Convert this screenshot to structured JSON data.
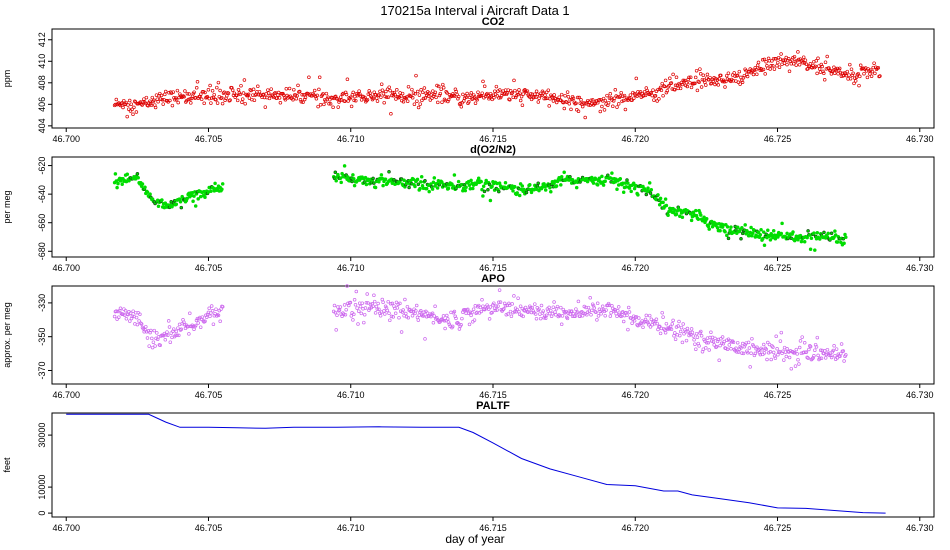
{
  "figure": {
    "title": "170215a   Interval i Aircraft Data 1",
    "xlabel": "day of year"
  },
  "chart_data": [
    {
      "type": "scatter",
      "title": "CO2",
      "ylabel": "ppm",
      "color": "#dd0000",
      "marker": "open-circle",
      "xlim": [
        46.6995,
        46.7305
      ],
      "ylim": [
        403.8,
        413.0
      ],
      "yticks": [
        404,
        406,
        408,
        410,
        412
      ],
      "xticks": [
        "46.700",
        "46.705",
        "46.710",
        "46.715",
        "46.720",
        "46.725",
        "46.730"
      ],
      "x_range": [
        46.7017,
        46.7286
      ],
      "trend_x": [
        46.7017,
        46.7025,
        46.7035,
        46.705,
        46.7065,
        46.708,
        46.7095,
        46.711,
        46.7125,
        46.714,
        46.7155,
        46.717,
        46.718,
        46.719,
        46.72,
        46.721,
        46.722,
        46.7235,
        46.7245,
        46.7255,
        46.7265,
        46.7275,
        46.7286
      ],
      "trend_y": [
        406.0,
        405.9,
        406.6,
        406.8,
        407.0,
        406.8,
        406.5,
        406.8,
        406.9,
        406.6,
        407.0,
        406.6,
        406.2,
        406.3,
        406.8,
        407.4,
        408.0,
        408.3,
        409.6,
        410.2,
        409.3,
        408.9,
        409.0
      ],
      "noise": 0.6
    },
    {
      "type": "scatter",
      "title": "d(O2/N2)",
      "ylabel": "per meg",
      "color": "#00dd00",
      "marker": "filled-circle",
      "xlim": [
        46.6995,
        46.7305
      ],
      "ylim": [
        -684,
        -614
      ],
      "yticks": [
        -680,
        -660,
        -640,
        -620
      ],
      "xticks": [
        "46.700",
        "46.705",
        "46.710",
        "46.715",
        "46.720",
        "46.725",
        "46.730"
      ],
      "x_ranges": [
        [
          46.7017,
          46.7055
        ],
        [
          46.7094,
          46.7274
        ]
      ],
      "trend_x": [
        46.7017,
        46.7025,
        46.703,
        46.7035,
        46.7045,
        46.7055,
        46.7094,
        46.7105,
        46.712,
        46.7135,
        46.715,
        46.716,
        46.7175,
        46.719,
        46.7205,
        46.721,
        46.722,
        46.723,
        46.7245,
        46.726,
        46.7274
      ],
      "trend_y": [
        -630,
        -630,
        -644,
        -648,
        -640,
        -636,
        -628,
        -630,
        -632,
        -634,
        -633,
        -638,
        -631,
        -629,
        -638,
        -648,
        -654,
        -664,
        -669,
        -670,
        -671
      ],
      "noise": 3.5
    },
    {
      "type": "scatter",
      "title": "APO",
      "ylabel": "approx. per meg",
      "color": "#cc66ee",
      "marker": "open-circle",
      "xlim": [
        46.6995,
        46.7305
      ],
      "ylim": [
        -378,
        -320
      ],
      "yticks": [
        -370,
        -350,
        -330
      ],
      "xticks": [
        "46.700",
        "46.705",
        "46.710",
        "46.715",
        "46.720",
        "46.725",
        "46.730"
      ],
      "x_ranges": [
        [
          46.7017,
          46.7055
        ],
        [
          46.7094,
          46.7274
        ]
      ],
      "trend_x": [
        46.7017,
        46.7025,
        46.703,
        46.704,
        46.7055,
        46.7094,
        46.7105,
        46.712,
        46.7135,
        46.715,
        46.717,
        46.719,
        46.7205,
        46.722,
        46.7235,
        46.725,
        46.7274
      ],
      "trend_y": [
        -336,
        -338,
        -352,
        -346,
        -334,
        -334,
        -332,
        -335,
        -340,
        -332,
        -336,
        -334,
        -342,
        -350,
        -356,
        -359,
        -361
      ],
      "noise": 4.5
    },
    {
      "type": "line",
      "title": "PALTF",
      "ylabel": "feet",
      "color": "#0000dd",
      "xlim": [
        46.6995,
        46.7305
      ],
      "ylim": [
        -1500,
        38500
      ],
      "yticks": [
        0,
        10000,
        30000
      ],
      "xticks": [
        "46.700",
        "46.705",
        "46.710",
        "46.715",
        "46.720",
        "46.725",
        "46.730"
      ],
      "x": [
        46.7,
        46.7029,
        46.7035,
        46.704,
        46.705,
        46.706,
        46.707,
        46.708,
        46.7095,
        46.711,
        46.7125,
        46.7138,
        46.7143,
        46.715,
        46.716,
        46.717,
        46.718,
        46.719,
        46.72,
        46.721,
        46.7215,
        46.722,
        46.723,
        46.724,
        46.725,
        46.726,
        46.727,
        46.728,
        46.7288
      ],
      "y": [
        38000,
        38000,
        35000,
        33000,
        33000,
        32800,
        32600,
        33000,
        33000,
        33200,
        33000,
        33000,
        31000,
        27000,
        21000,
        17000,
        14000,
        11000,
        10500,
        8500,
        8500,
        7000,
        5500,
        4000,
        2000,
        1800,
        1000,
        200,
        0
      ]
    }
  ]
}
